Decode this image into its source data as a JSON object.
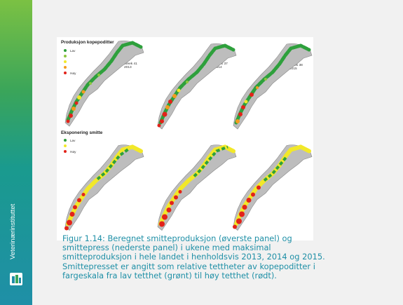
{
  "sidebar": {
    "brand_text": "Veterinærinstituttet",
    "logo_icon": "veterinaerinstituttet-logo-icon"
  },
  "figure": {
    "top_panel": {
      "title": "Produksjon kopepoditter",
      "legend": [
        {
          "label": "Lav",
          "color": "#2ea03c"
        },
        {
          "label": "",
          "color": "#8cc63f"
        },
        {
          "label": "",
          "color": "#f2e829"
        },
        {
          "label": "",
          "color": "#f49b1e"
        },
        {
          "label": "Høy",
          "color": "#e2231a"
        }
      ]
    },
    "bottom_panel": {
      "title": "Eksponering smitte",
      "legend": [
        {
          "label": "Lav",
          "color": "#2ea03c"
        },
        {
          "label": "",
          "color": "#f2e829"
        },
        {
          "label": "Høy",
          "color": "#e2231a"
        }
      ]
    },
    "weeks": [
      {
        "week": "Week 41",
        "year": "2013"
      },
      {
        "week": "Week 37",
        "year": "2014"
      },
      {
        "week": "Week 38",
        "year": "2015"
      }
    ]
  },
  "caption": "Figur 1.14: Beregnet smitteproduksjon (øverste panel) og smittepress (nederste panel) i ukene med maksimal smitteproduksjon i hele landet i henholdsvis 2013, 2014 og 2015. Smittepresset er angitt som relative tettheter av kopepoditter i fargeskala fra lav tetthet (grønt) til høy tetthet (rødt)."
}
